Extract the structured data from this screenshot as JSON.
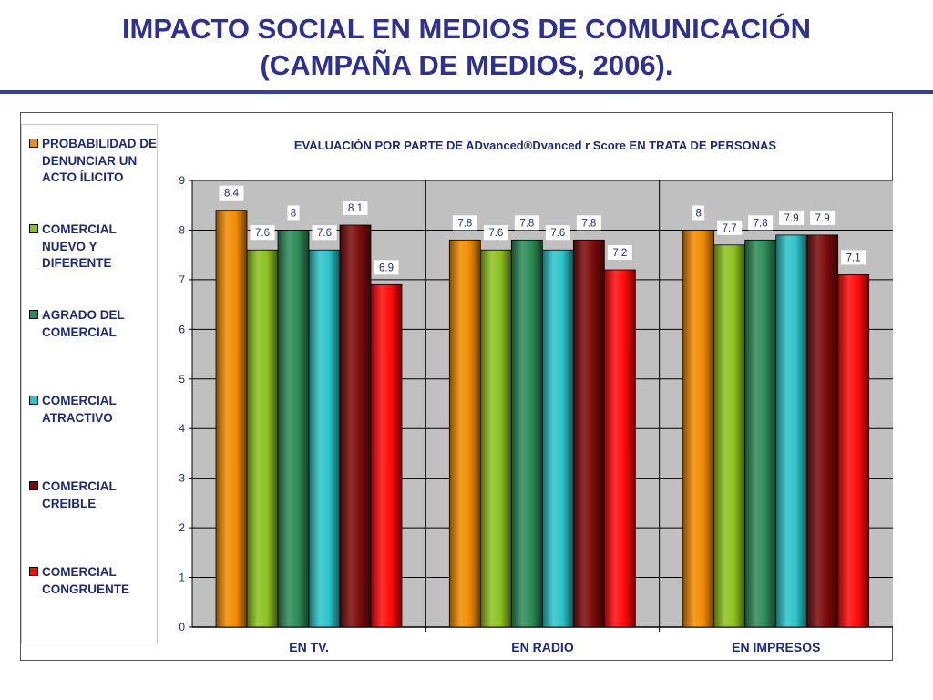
{
  "slide": {
    "title_line1": "IMPACTO SOCIAL EN MEDIOS DE COMUNICACIÓN",
    "title_line2": "(CAMPAÑA DE MEDIOS, 2006)."
  },
  "chart_data": {
    "type": "bar",
    "title": "EVALUACIÓN POR PARTE DE ADvanced®Dvanced r Score  EN TRATA DE PERSONAS",
    "categories": [
      "EN TV.",
      "EN RADIO",
      "EN IMPRESOS"
    ],
    "ylim": [
      0,
      9
    ],
    "yticks": [
      "0",
      "1",
      "2",
      "3",
      "4",
      "5",
      "6",
      "7",
      "8",
      "9"
    ],
    "grid": true,
    "legend_position": "left",
    "series": [
      {
        "name": "PROBABILIDAD DE DENUNCIAR UN ACTO ÍLICITO",
        "values": [
          8.4,
          7.8,
          8
        ],
        "labels": [
          "8.4",
          "7.8",
          "8"
        ],
        "color": "#f28c00"
      },
      {
        "name": "COMERCIAL NUEVO Y DIFERENTE",
        "values": [
          7.6,
          7.6,
          7.7
        ],
        "labels": [
          "7.6",
          "7.6",
          "7.7"
        ],
        "color": "#8dc21f"
      },
      {
        "name": "AGRADO DEL COMERCIAL",
        "values": [
          8,
          7.8,
          7.8
        ],
        "labels": [
          "8",
          "7.8",
          "7.8"
        ],
        "color": "#2e8b57"
      },
      {
        "name": "COMERCIAL ATRACTIVO",
        "values": [
          7.6,
          7.6,
          7.9
        ],
        "labels": [
          "7.6",
          "7.6",
          "7.9"
        ],
        "color": "#2bc4c9"
      },
      {
        "name": "COMERCIAL CREIBLE",
        "values": [
          8.1,
          7.8,
          7.9
        ],
        "labels": [
          "8.1",
          "7.8",
          "7.9"
        ],
        "color": "#7a0a0a"
      },
      {
        "name": "COMERCIAL CONGRUENTE",
        "values": [
          6.9,
          7.2,
          7.1
        ],
        "labels": [
          "6.9",
          "7.2",
          "7.1"
        ],
        "color": "#ff0a0a"
      }
    ]
  }
}
